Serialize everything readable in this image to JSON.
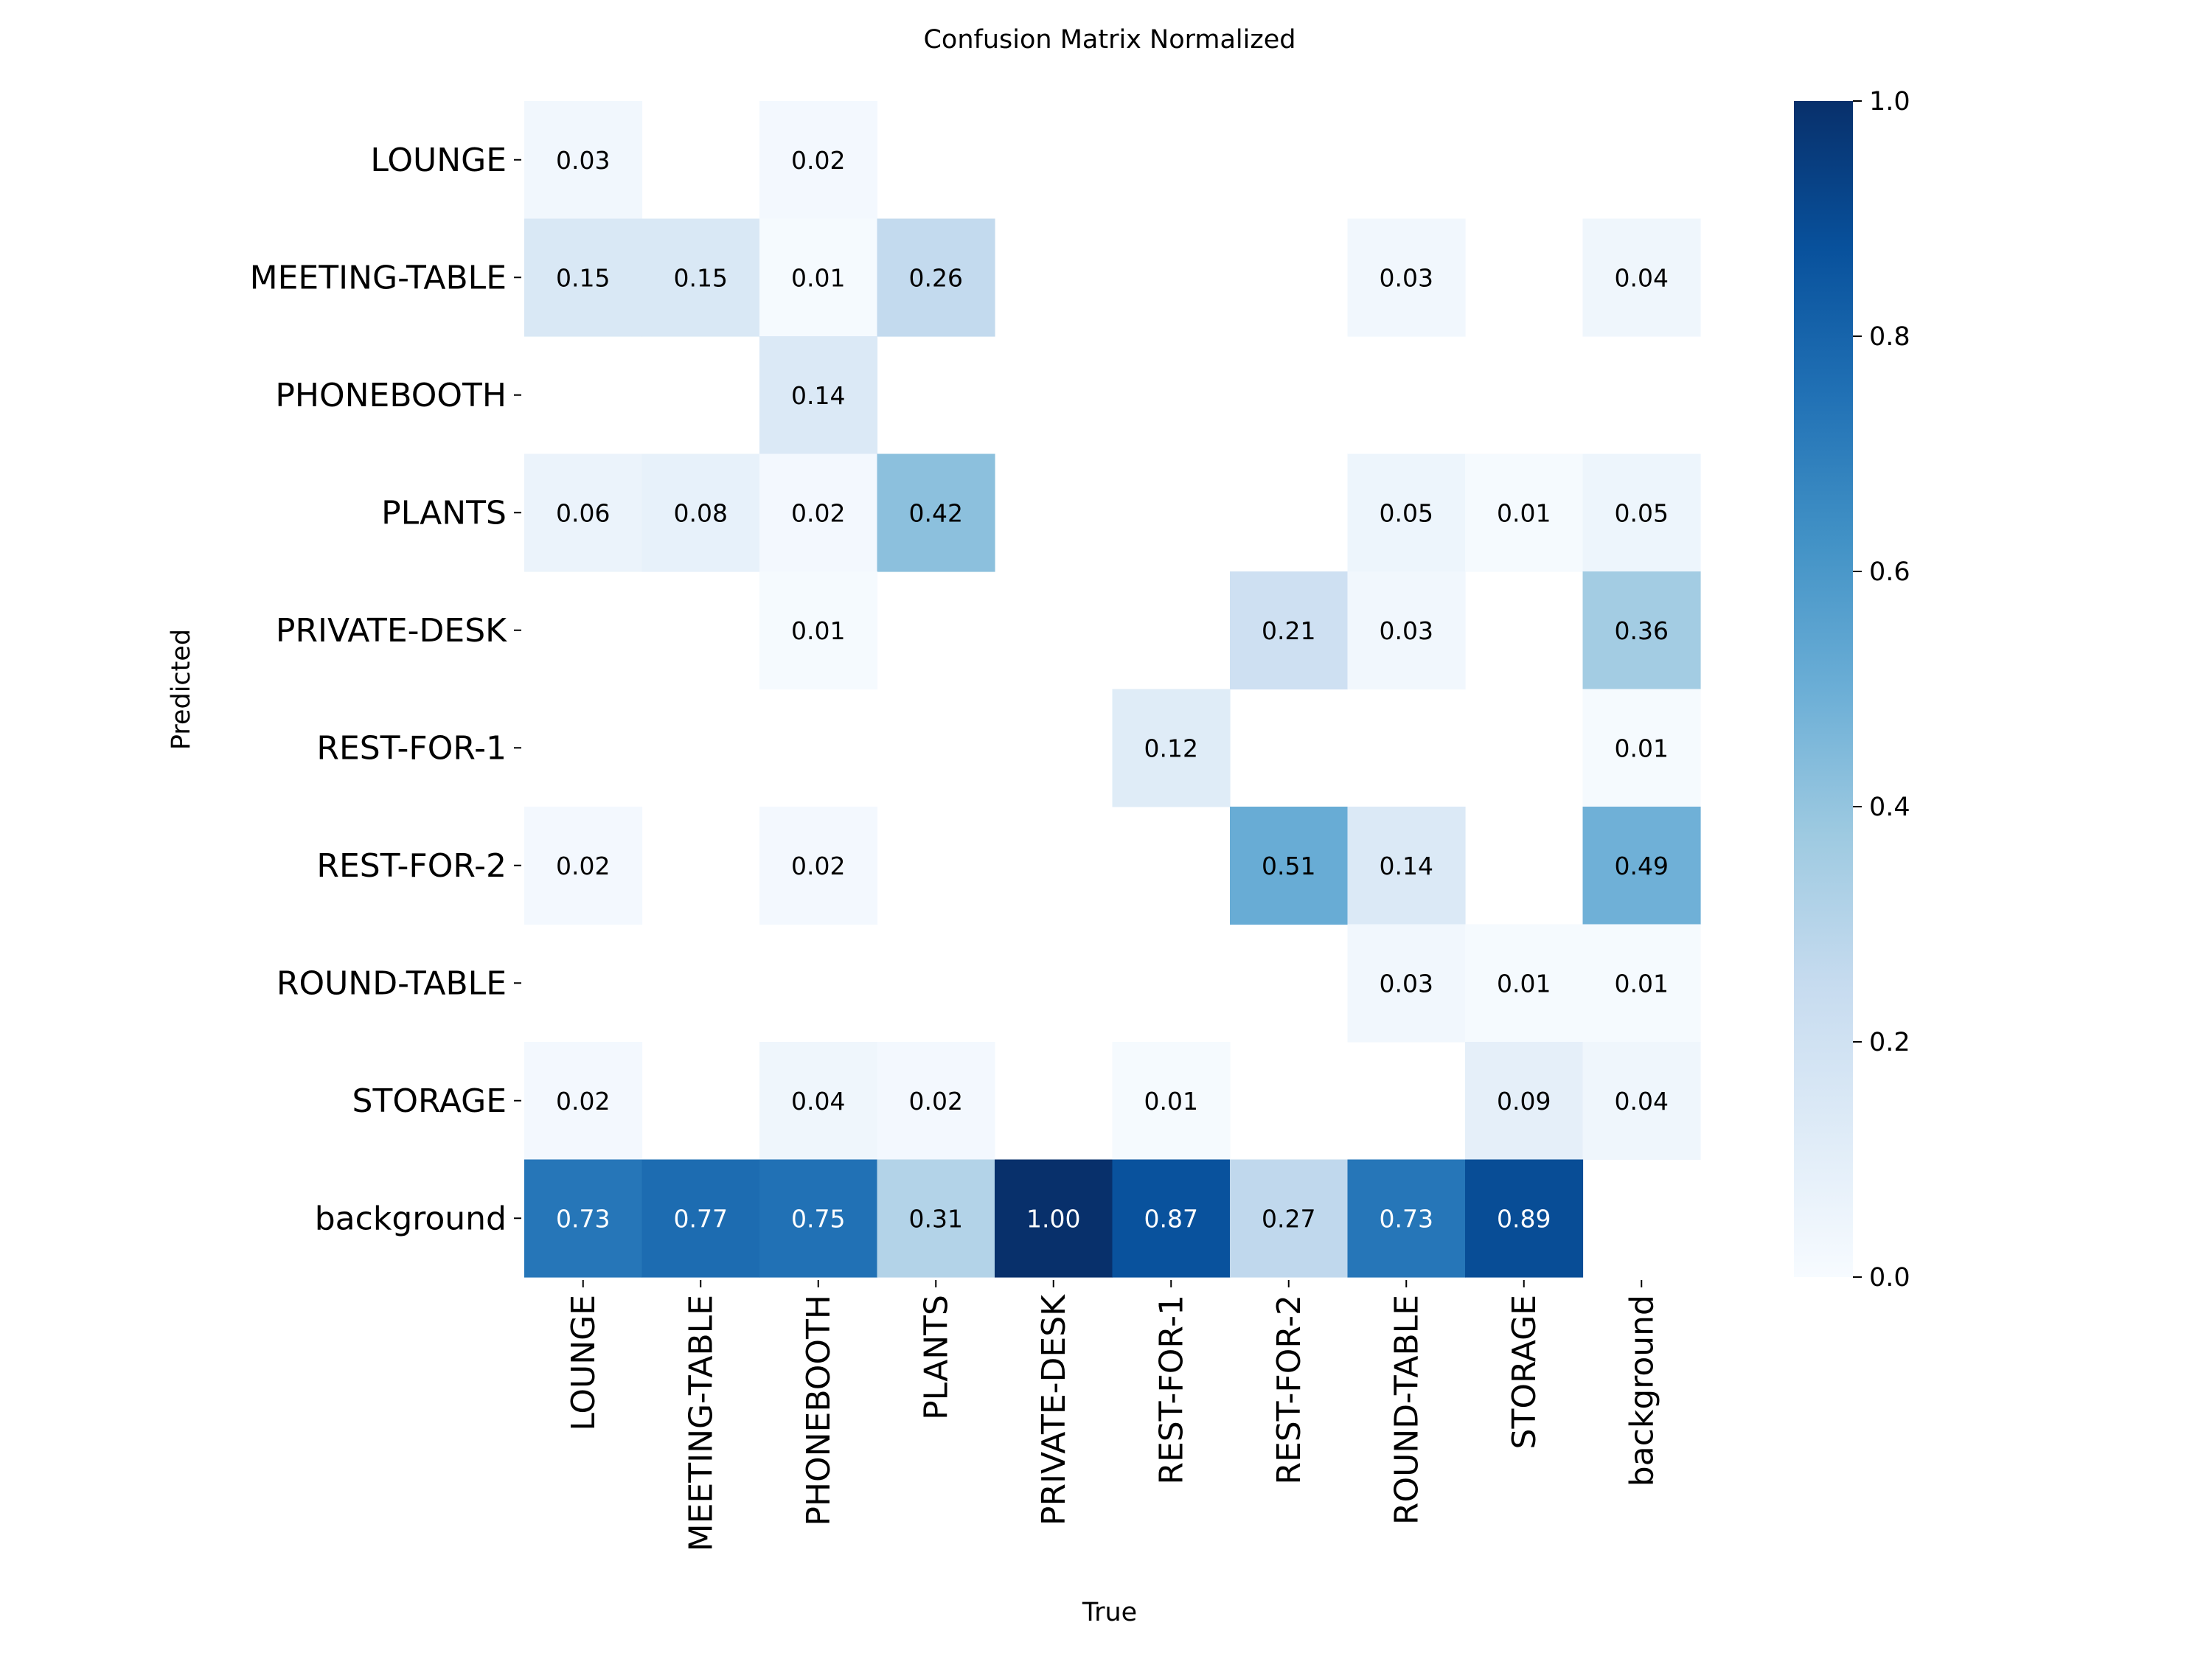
{
  "chart_data": {
    "type": "heatmap",
    "title": "Confusion Matrix Normalized",
    "xlabel": "True",
    "ylabel": "Predicted",
    "row_labels": [
      "LOUNGE",
      "MEETING-TABLE",
      "PHONEBOOTH",
      "PLANTS",
      "PRIVATE-DESK",
      "REST-FOR-1",
      "REST-FOR-2",
      "ROUND-TABLE",
      "STORAGE",
      "background"
    ],
    "col_labels": [
      "LOUNGE",
      "MEETING-TABLE",
      "PHONEBOOTH",
      "PLANTS",
      "PRIVATE-DESK",
      "REST-FOR-1",
      "REST-FOR-2",
      "ROUND-TABLE",
      "STORAGE",
      "background"
    ],
    "values": [
      [
        0.03,
        null,
        0.02,
        null,
        null,
        null,
        null,
        null,
        null,
        null
      ],
      [
        0.15,
        0.15,
        0.01,
        0.26,
        null,
        null,
        null,
        0.03,
        null,
        0.04
      ],
      [
        null,
        null,
        0.14,
        null,
        null,
        null,
        null,
        null,
        null,
        null
      ],
      [
        0.06,
        0.08,
        0.02,
        0.42,
        null,
        null,
        null,
        0.05,
        0.01,
        0.05
      ],
      [
        null,
        null,
        0.01,
        null,
        null,
        null,
        0.21,
        0.03,
        null,
        0.36
      ],
      [
        null,
        null,
        null,
        null,
        null,
        0.12,
        null,
        null,
        null,
        0.01
      ],
      [
        0.02,
        null,
        0.02,
        null,
        null,
        null,
        0.51,
        0.14,
        null,
        0.49
      ],
      [
        null,
        null,
        null,
        null,
        null,
        null,
        null,
        0.03,
        0.01,
        0.01
      ],
      [
        0.02,
        null,
        0.04,
        0.02,
        null,
        0.01,
        null,
        null,
        0.09,
        0.04
      ],
      [
        0.73,
        0.77,
        0.75,
        0.31,
        1.0,
        0.87,
        0.27,
        0.73,
        0.89,
        null
      ]
    ],
    "vmin": 0.0,
    "vmax": 1.0,
    "colormap": "Blues",
    "colorbar_ticks": [
      "0.0",
      "0.2",
      "0.4",
      "0.6",
      "0.8",
      "1.0"
    ],
    "grid": false
  }
}
